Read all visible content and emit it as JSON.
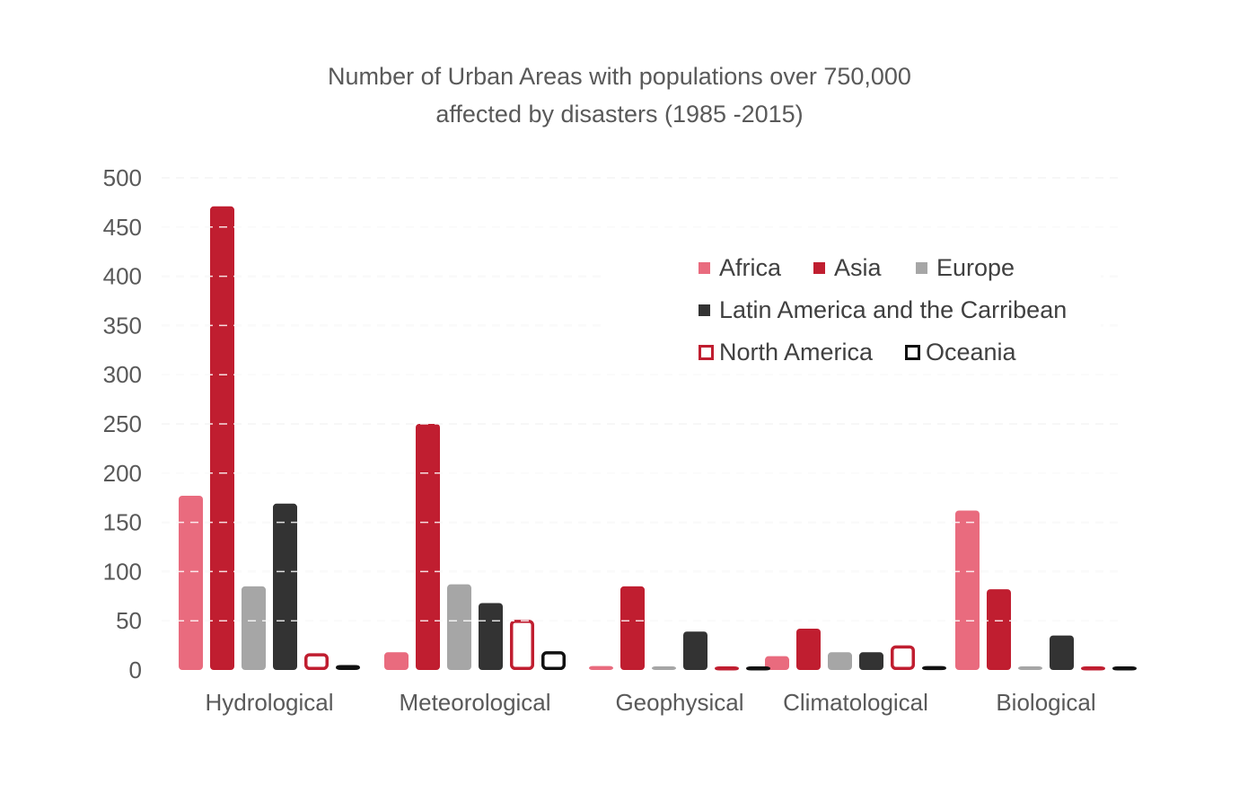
{
  "chart_data": {
    "type": "bar",
    "title_line1": "Number of Urban Areas with populations over 750,000",
    "title_line2": "affected by disasters (1985  -2015)",
    "xlabel": "",
    "ylabel": "",
    "ylim": [
      0,
      500
    ],
    "yticks": [
      "0",
      "50",
      "100",
      "150",
      "200",
      "250",
      "300",
      "350",
      "400",
      "450",
      "500"
    ],
    "grid": true,
    "legend_position": "top-right",
    "categories": [
      "Hydrological",
      "Meteorological",
      "Geophysical",
      "Climatological",
      "Biological"
    ],
    "series": [
      {
        "name": "Africa",
        "color": "#E96B7E",
        "style": "filled",
        "values": [
          177,
          18,
          4,
          14,
          162
        ]
      },
      {
        "name": "Asia",
        "color": "#C01E30",
        "style": "filled",
        "values": [
          471,
          250,
          85,
          42,
          82
        ]
      },
      {
        "name": "Europe",
        "color": "#A6A6A6",
        "style": "filled",
        "values": [
          85,
          87,
          3,
          18,
          1
        ]
      },
      {
        "name": "Latin America and the Carribean",
        "color": "#333333",
        "style": "filled",
        "values": [
          169,
          68,
          39,
          18,
          35
        ]
      },
      {
        "name": "North America",
        "color": "#C01E30",
        "style": "outline",
        "values": [
          17,
          51,
          3,
          25,
          2
        ]
      },
      {
        "name": "Oceania",
        "color": "#111111",
        "style": "outline",
        "values": [
          5,
          19,
          0,
          4,
          0
        ]
      }
    ]
  }
}
